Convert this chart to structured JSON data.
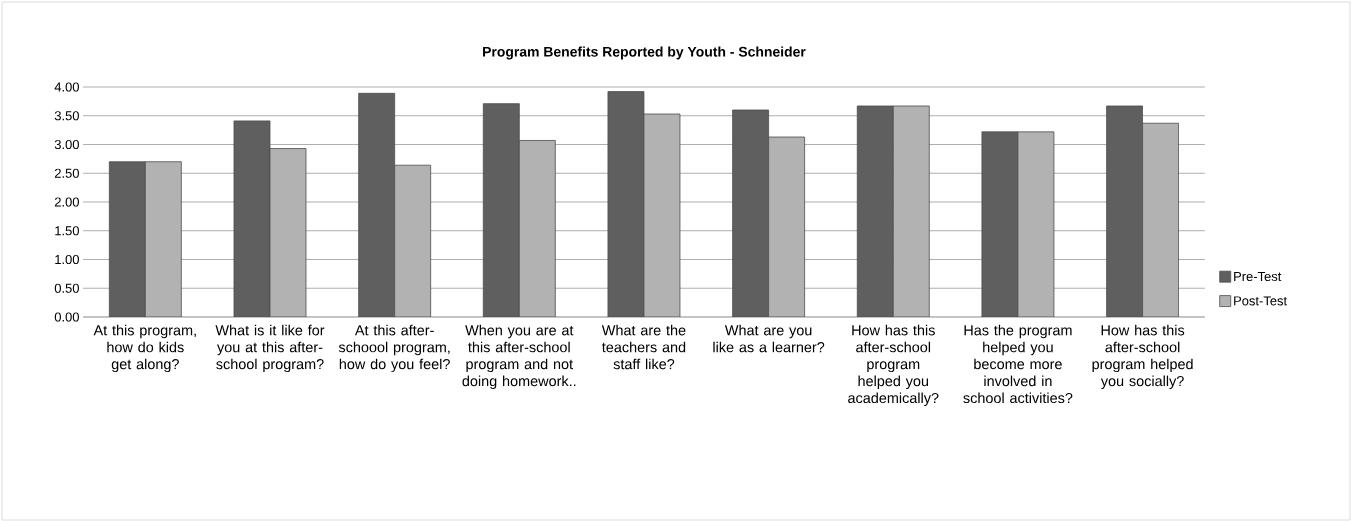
{
  "chart_data": {
    "type": "bar",
    "title": "Program Benefits Reported by Youth - Schneider",
    "categories": [
      "At this program, how do kids get along?",
      "What is it like for you at this after-school program?",
      "At this after-schoool program, how do you feel?",
      "When you are at this after-school program and not doing homework..",
      "What are the teachers and staff like?",
      "What are you like as a learner?",
      "How has this after-school program helped you academically?",
      "Has the program helped you become more involved in school activities?",
      "How has this after-school program helped you socially?"
    ],
    "series": [
      {
        "name": "Pre-Test",
        "color": "#5f5f5f",
        "values": [
          2.7,
          3.41,
          3.89,
          3.71,
          3.92,
          3.6,
          3.67,
          3.22,
          3.67
        ]
      },
      {
        "name": "Post-Test",
        "color": "#b2b2b2",
        "values": [
          2.7,
          2.93,
          2.64,
          3.07,
          3.53,
          3.13,
          3.67,
          3.22,
          3.37
        ]
      }
    ],
    "ylim": [
      0,
      4
    ],
    "yticks": [
      {
        "value": 0,
        "label": "0.00"
      },
      {
        "value": 0.5,
        "label": "0.50"
      },
      {
        "value": 1,
        "label": "1.00"
      },
      {
        "value": 1.5,
        "label": "1.50"
      },
      {
        "value": 2,
        "label": "2.00"
      },
      {
        "value": 2.5,
        "label": "2.50"
      },
      {
        "value": 3,
        "label": "3.00"
      },
      {
        "value": 3.5,
        "label": "3.50"
      },
      {
        "value": 4,
        "label": "4.00"
      }
    ],
    "grid": "y",
    "legend": "right"
  }
}
